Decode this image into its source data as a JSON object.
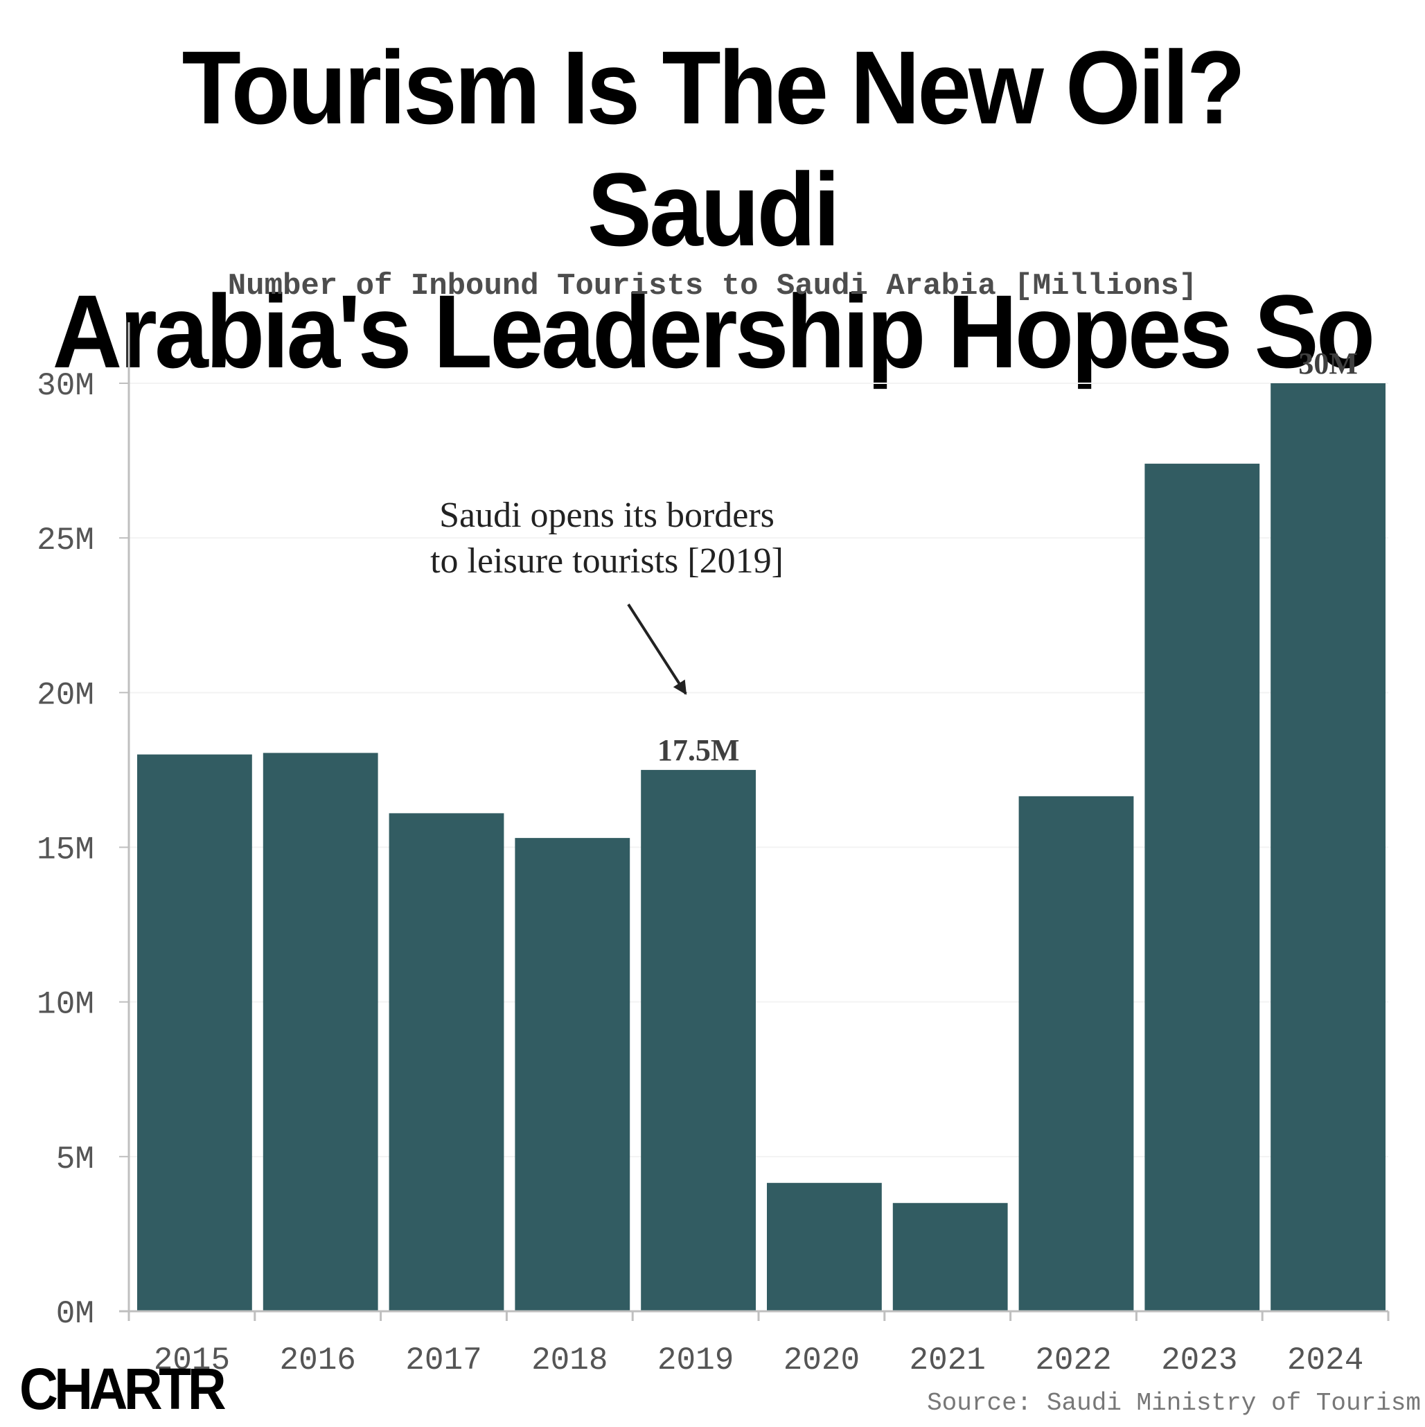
{
  "header": {
    "title_line1": "Tourism Is The New Oil? Saudi",
    "title_line2": "Arabia's Leadership Hopes So",
    "subtitle": "Number of Inbound Tourists to Saudi Arabia [Millions]"
  },
  "footer": {
    "logo": "CHARTR",
    "source": "Source: Saudi Ministry of Tourism"
  },
  "colors": {
    "bar": "#325c62",
    "axis": "#bfbfbf",
    "grid": "#f3f3f3"
  },
  "chart_data": {
    "type": "bar",
    "title": "Tourism Is The New Oil? Saudi Arabia's Leadership Hopes So",
    "subtitle": "Number of Inbound Tourists to Saudi Arabia [Millions]",
    "categories": [
      "2015",
      "2016",
      "2017",
      "2018",
      "2019",
      "2020",
      "2021",
      "2022",
      "2023",
      "2024"
    ],
    "values": [
      18.0,
      18.05,
      16.1,
      15.3,
      17.5,
      4.15,
      3.5,
      16.65,
      27.4,
      30.0
    ],
    "ylim": [
      0,
      32
    ],
    "yticks": [
      0,
      5,
      10,
      15,
      20,
      25,
      30
    ],
    "ytick_labels": [
      "0M",
      "5M",
      "10M",
      "15M",
      "20M",
      "25M",
      "30M"
    ],
    "data_labels": [
      {
        "category": "2019",
        "text": "17.5M"
      },
      {
        "category": "2024",
        "text": "30M"
      }
    ],
    "annotation": {
      "lines": [
        "Saudi opens its borders",
        "to leisure tourists [2019]"
      ],
      "target_category": "2019"
    },
    "grid": true,
    "legend": "none"
  }
}
